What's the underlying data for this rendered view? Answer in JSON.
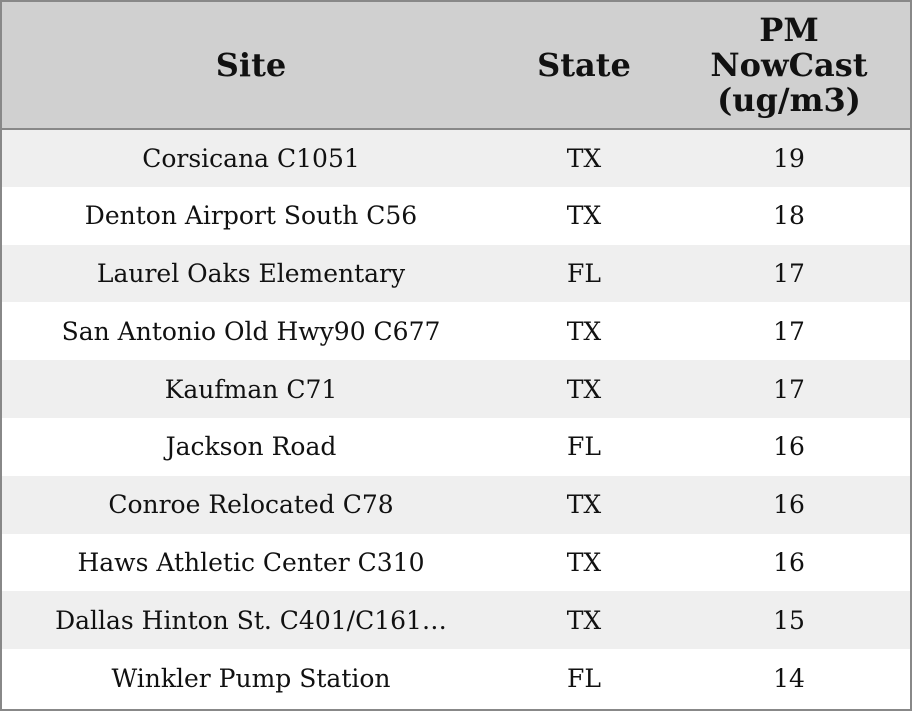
{
  "table": {
    "header": [
      "Site",
      "State",
      "PM NowCast (ug/m3)"
    ],
    "rows": [
      [
        "Corsicana C1051",
        "TX",
        19
      ],
      [
        "Denton Airport South C56",
        "TX",
        18
      ],
      [
        "Laurel Oaks Elementary",
        "FL",
        17
      ],
      [
        "San Antonio Old Hwy90 C677",
        "TX",
        17
      ],
      [
        "Kaufman C71",
        "TX",
        17
      ],
      [
        "Jackson Road",
        "FL",
        16
      ],
      [
        "Conroe Relocated C78",
        "TX",
        16
      ],
      [
        "Haws Athletic Center C310",
        "TX",
        16
      ],
      [
        "Dallas Hinton St. C401/C161…",
        "TX",
        15
      ],
      [
        "Winkler Pump Station",
        "FL",
        14
      ]
    ]
  }
}
